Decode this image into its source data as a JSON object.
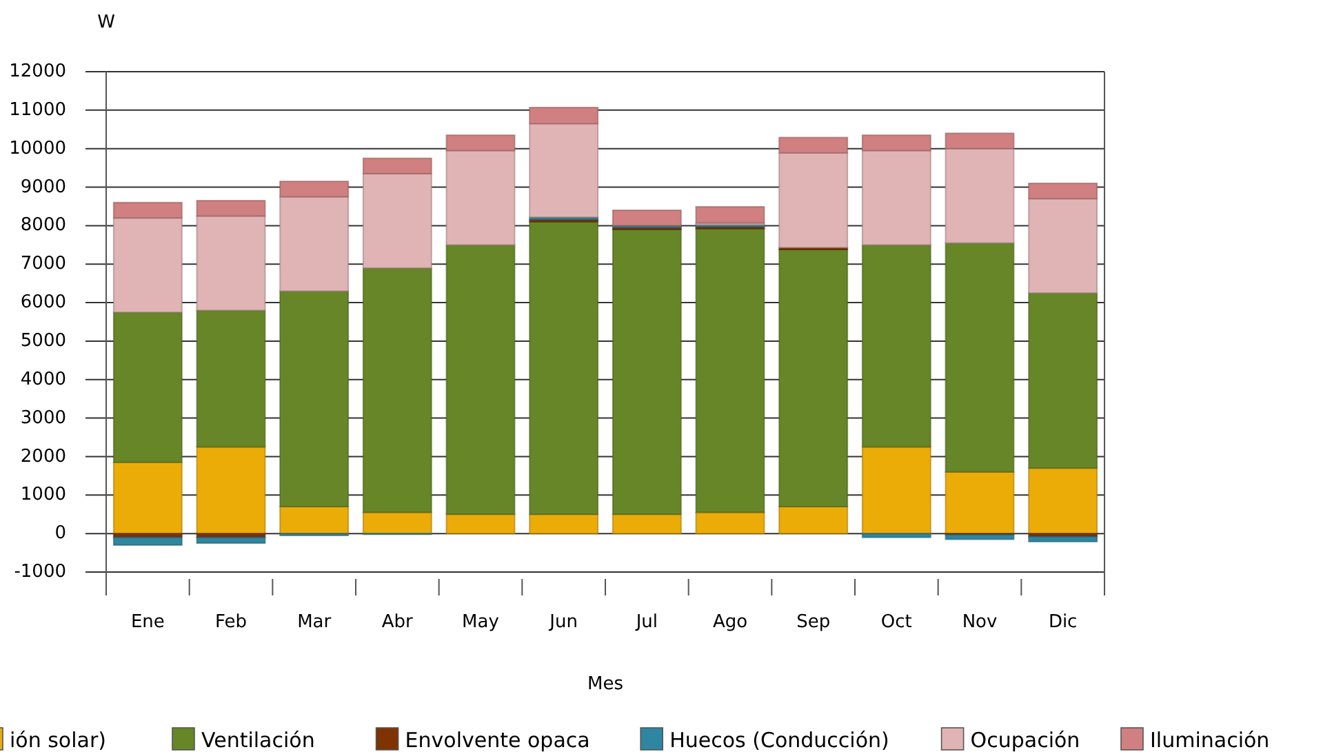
{
  "chart_data": {
    "type": "bar",
    "stacked": true,
    "ylabel": "W",
    "xlabel": "Mes",
    "categories": [
      "Ene",
      "Feb",
      "Mar",
      "Abr",
      "May",
      "Jun",
      "Jul",
      "Ago",
      "Sep",
      "Oct",
      "Nov",
      "Dic"
    ],
    "ylim": [
      -1000,
      12000
    ],
    "yticks": [
      -1000,
      0,
      1000,
      2000,
      3000,
      4000,
      5000,
      6000,
      7000,
      8000,
      9000,
      10000,
      11000,
      12000
    ],
    "grid": "y",
    "legend": "bottom",
    "series": [
      {
        "name": "ión solar)",
        "color": "#ecac08",
        "values": [
          1850,
          2250,
          700,
          550,
          500,
          500,
          500,
          550,
          700,
          2250,
          1600,
          1700
        ]
      },
      {
        "name": "Ventilación",
        "color": "#668628",
        "values": [
          3900,
          3550,
          5600,
          6350,
          7000,
          7600,
          7400,
          7370,
          6680,
          5250,
          5950,
          4550
        ]
      },
      {
        "name": "Envolvente opaca",
        "color": "#7f3300",
        "values": [
          -100,
          -100,
          null,
          0,
          null,
          60,
          50,
          50,
          50,
          null,
          -30,
          -80
        ]
      },
      {
        "name": "Huecos (Conducción)",
        "color": "#2e86a0",
        "values": [
          -200,
          -150,
          -50,
          -20,
          0,
          60,
          50,
          50,
          0,
          -100,
          -120,
          -130
        ]
      },
      {
        "name": "Ocupación",
        "color": "#e0b4b4",
        "values": [
          2450,
          2450,
          2450,
          2450,
          2450,
          2430,
          0,
          50,
          2460,
          2450,
          2450,
          2450
        ]
      },
      {
        "name": "Iluminación",
        "color": "#d08080",
        "values": [
          400,
          400,
          400,
          400,
          400,
          420,
          400,
          420,
          400,
          400,
          400,
          400
        ]
      }
    ]
  }
}
